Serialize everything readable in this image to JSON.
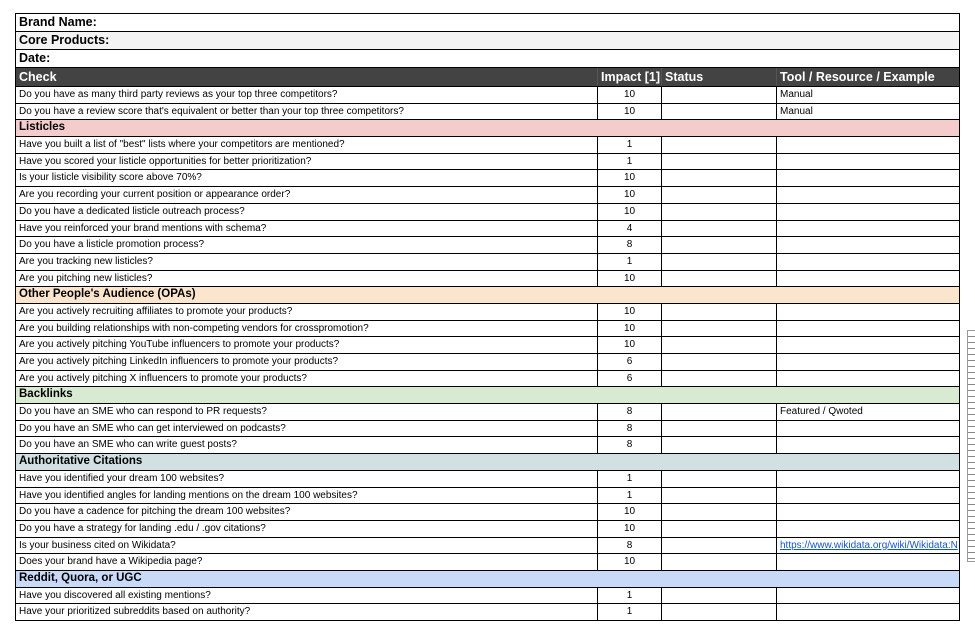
{
  "meta": {
    "brand_name": "Brand Name:",
    "core_products": "Core Products:",
    "date": "Date:"
  },
  "header": {
    "check": "Check",
    "impact": "Impact [1]",
    "status": "Status",
    "tool": "Tool / Resource / Example"
  },
  "colors": {
    "header_bg": "#434343",
    "link": "#1155cc"
  },
  "groups": [
    {
      "title": "",
      "color": "#ffffff",
      "rows": [
        {
          "check": "Do you have as many third party reviews as your top three competitors?",
          "impact": "10",
          "status": "",
          "tool": "Manual"
        },
        {
          "check": "Do you have a review score that's equivalent or better than your top three competitors?",
          "impact": "10",
          "status": "",
          "tool": "Manual"
        }
      ]
    },
    {
      "title": "Listicles",
      "color": "#f4cccc",
      "rows": [
        {
          "check": "Have you built a list of \"best\" lists where your competitors are mentioned?",
          "impact": "1",
          "status": "",
          "tool": ""
        },
        {
          "check": "Have you scored your listicle opportunities for better prioritization?",
          "impact": "1",
          "status": "",
          "tool": ""
        },
        {
          "check": "Is your listicle visibility score above 70%?",
          "impact": "10",
          "status": "",
          "tool": ""
        },
        {
          "check": "Are you recording your current position or appearance order?",
          "impact": "10",
          "status": "",
          "tool": ""
        },
        {
          "check": "Do you have a dedicated listicle outreach process?",
          "impact": "10",
          "status": "",
          "tool": ""
        },
        {
          "check": "Have you reinforced your brand mentions with schema?",
          "impact": "4",
          "status": "",
          "tool": ""
        },
        {
          "check": "Do you have a listicle promotion process?",
          "impact": "8",
          "status": "",
          "tool": ""
        },
        {
          "check": "Are you tracking new listicles?",
          "impact": "1",
          "status": "",
          "tool": ""
        },
        {
          "check": "Are you pitching new listicles?",
          "impact": "10",
          "status": "",
          "tool": ""
        }
      ]
    },
    {
      "title": "Other People's Audience (OPAs)",
      "color": "#fce5cd",
      "rows": [
        {
          "check": "Are you actively recruiting affiliates to promote your products?",
          "impact": "10",
          "status": "",
          "tool": ""
        },
        {
          "check": "Are you building relationships with non-competing vendors for crosspromotion?",
          "impact": "10",
          "status": "",
          "tool": ""
        },
        {
          "check": "Are you actively pitching YouTube influencers to promote your products?",
          "impact": "10",
          "status": "",
          "tool": ""
        },
        {
          "check": "Are you actively pitching LinkedIn influencers to promote your products?",
          "impact": "6",
          "status": "",
          "tool": ""
        },
        {
          "check": "Are you actively pitching X influencers to promote your products?",
          "impact": "6",
          "status": "",
          "tool": ""
        }
      ]
    },
    {
      "title": "Backlinks",
      "color": "#d9ead3",
      "rows": [
        {
          "check": "Do you have an SME who can respond to PR requests?",
          "impact": "8",
          "status": "",
          "tool": "Featured / Qwoted"
        },
        {
          "check": "Do you have an SME who can get interviewed on podcasts?",
          "impact": "8",
          "status": "",
          "tool": ""
        },
        {
          "check": "Do you have an SME who can write guest posts?",
          "impact": "8",
          "status": "",
          "tool": ""
        }
      ]
    },
    {
      "title": "Authoritative Citations",
      "color": "#d0e0e3",
      "rows": [
        {
          "check": "Have you identified your dream 100 websites?",
          "impact": "1",
          "status": "",
          "tool": ""
        },
        {
          "check": "Have you identified angles for landing mentions on the dream 100 websites?",
          "impact": "1",
          "status": "",
          "tool": ""
        },
        {
          "check": "Do you have a cadence for pitching the dream 100 websites?",
          "impact": "10",
          "status": "",
          "tool": ""
        },
        {
          "check": "Do you have a strategy for landing .edu / .gov citations?",
          "impact": "10",
          "status": "",
          "tool": ""
        },
        {
          "check": "Is your business cited on Wikidata?",
          "impact": "8",
          "status": "",
          "tool": "https://www.wikidata.org/wiki/Wikidata:N",
          "tool_is_link": true
        },
        {
          "check": "Does your brand have a Wikipedia page?",
          "impact": "10",
          "status": "",
          "tool": ""
        }
      ]
    },
    {
      "title": "Reddit, Quora, or UGC",
      "color": "#c9daf8",
      "rows": [
        {
          "check": "Have you discovered all existing mentions?",
          "impact": "1",
          "status": "",
          "tool": ""
        },
        {
          "check": "Have your prioritized subreddits based on authority?",
          "impact": "1",
          "status": "",
          "tool": ""
        }
      ]
    }
  ]
}
